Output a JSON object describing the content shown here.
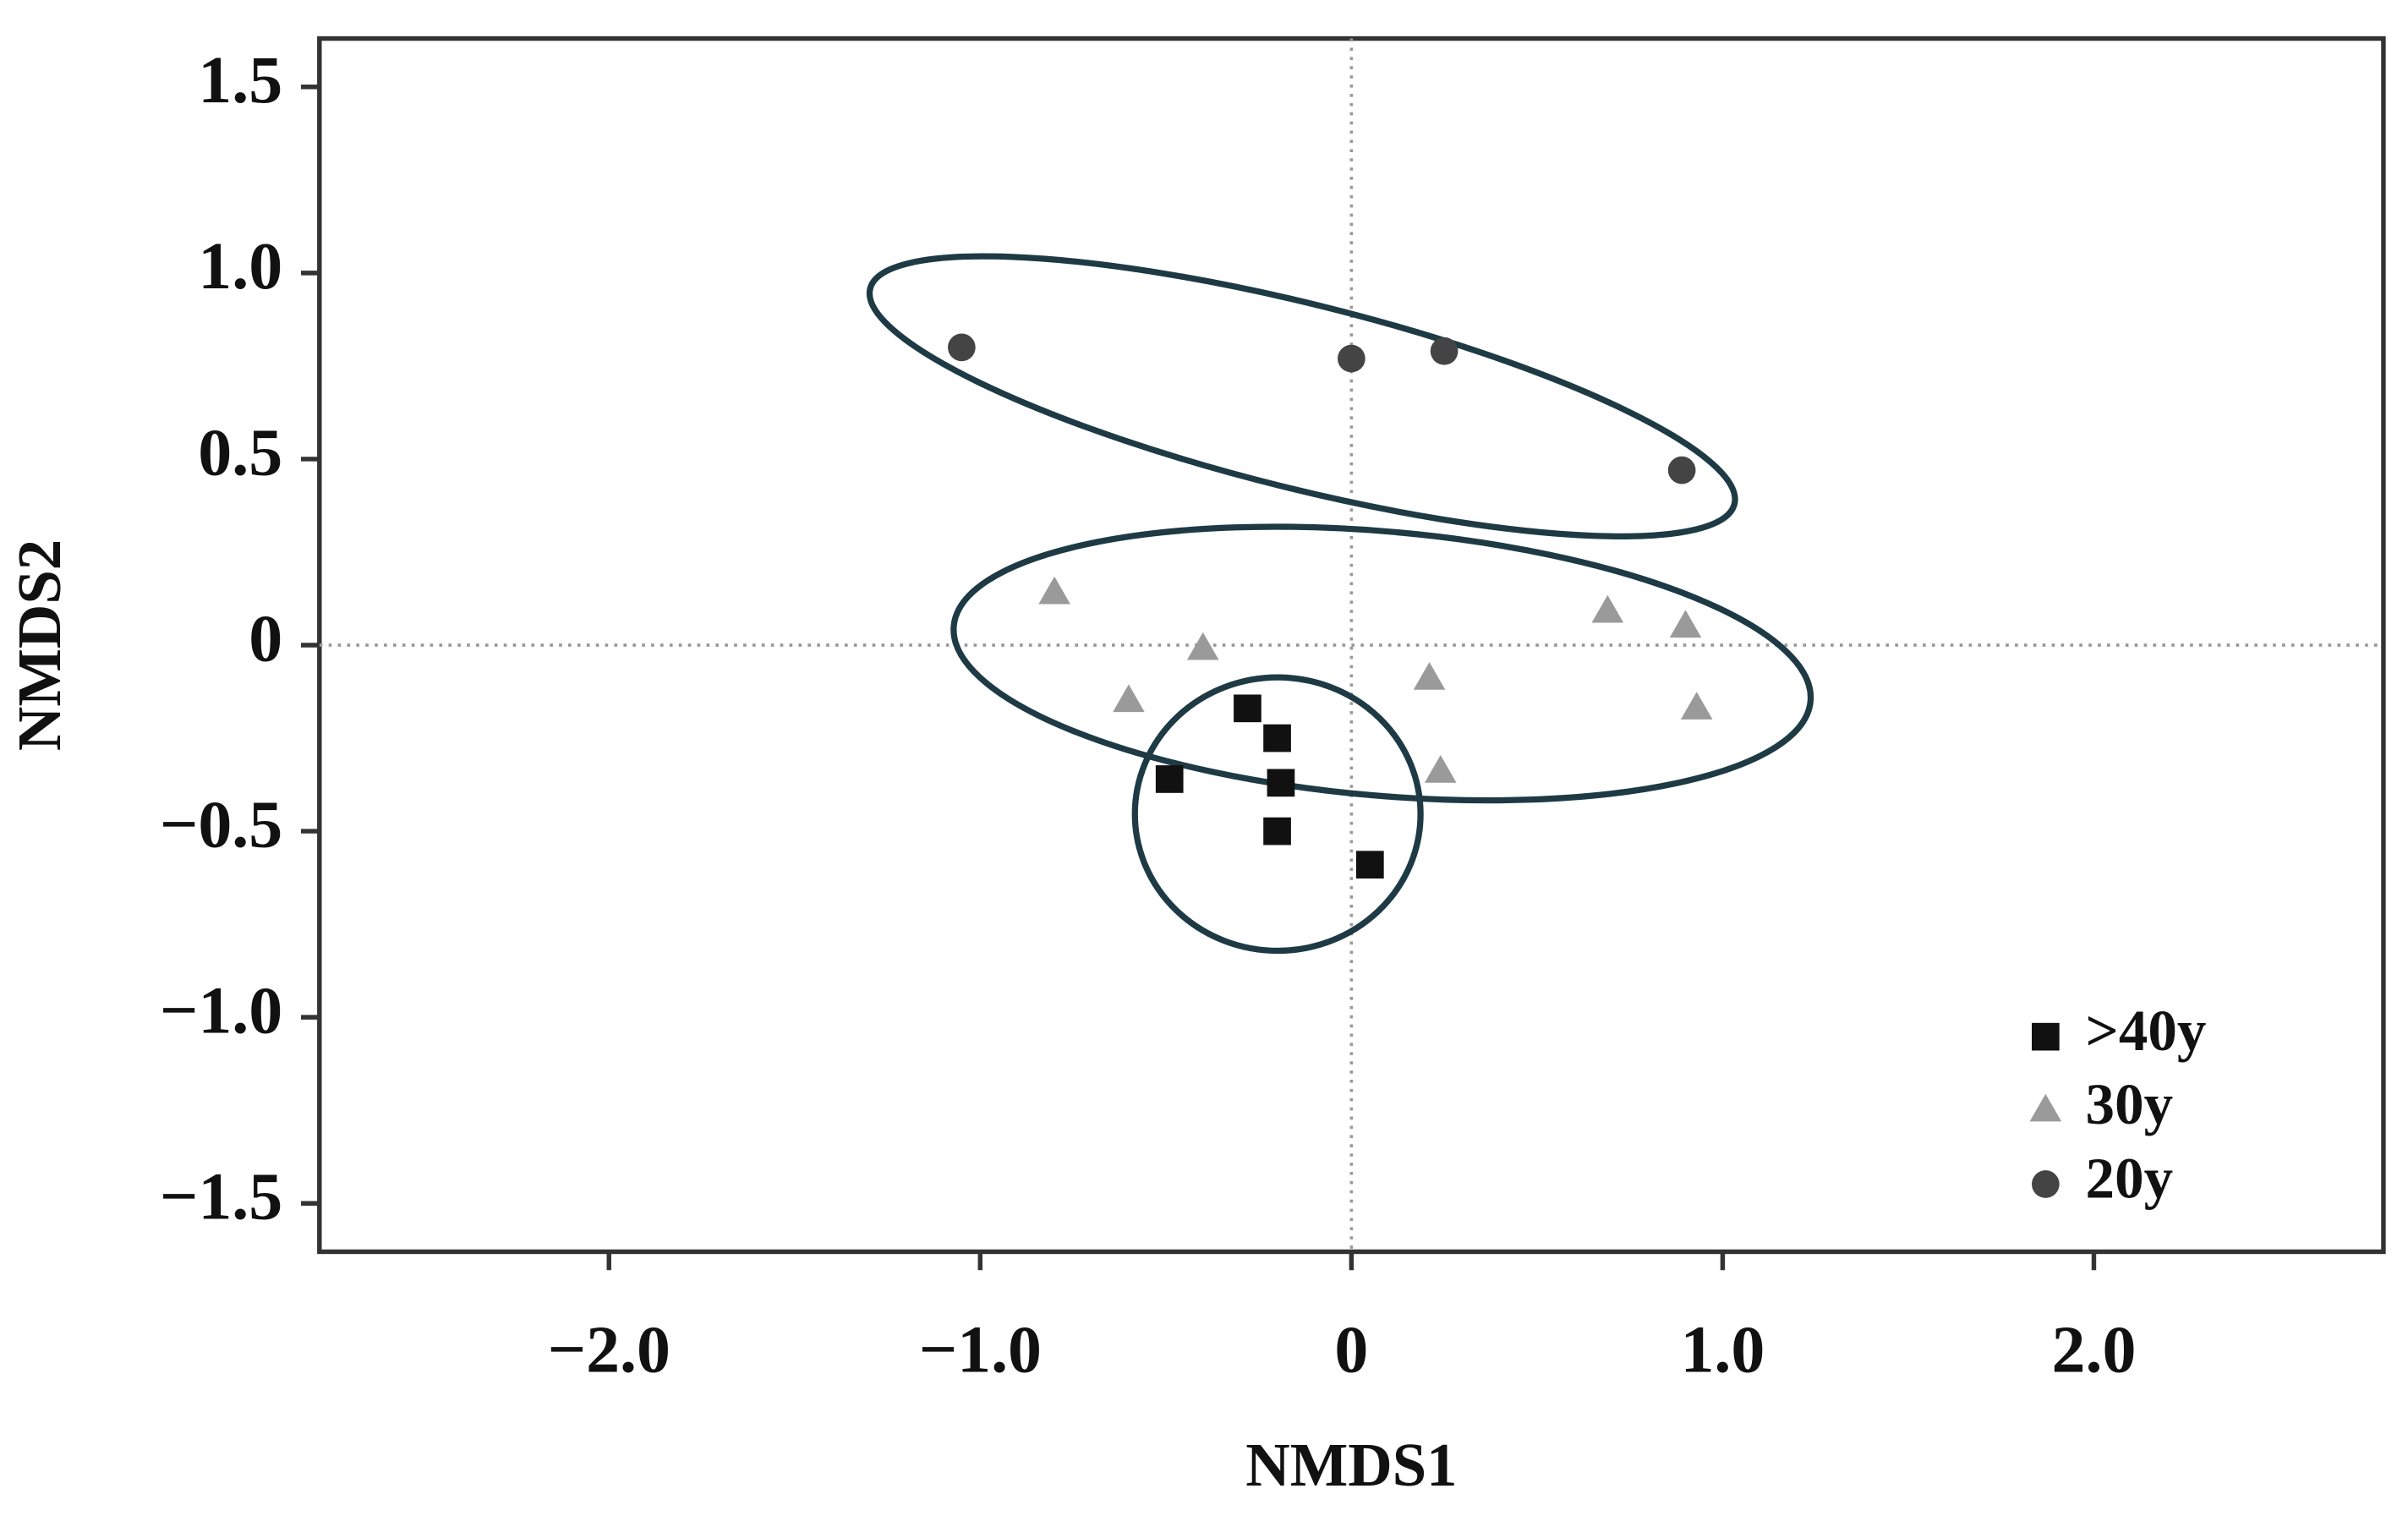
{
  "chart_data": {
    "type": "scatter",
    "xlabel": "NMDS1",
    "ylabel": "NMDS2",
    "xlim": [
      -2.78,
      2.78
    ],
    "ylim": [
      -1.63,
      1.63
    ],
    "xticks": [
      {
        "value": -2,
        "label": "−2.0"
      },
      {
        "value": -1,
        "label": "−1.0"
      },
      0,
      {
        "value": 1,
        "label": "1.0"
      },
      {
        "value": 2,
        "label": "2.0"
      }
    ],
    "yticks": [
      {
        "value": -1.5,
        "label": "−1.5"
      },
      {
        "value": -1,
        "label": "−1.0"
      },
      {
        "value": -0.5,
        "label": "−0.5"
      },
      0,
      0.5,
      {
        "value": 1,
        "label": "1.0"
      },
      1.5
    ],
    "legend": "lower right",
    "series": [
      {
        "name": ">40y",
        "color": "#111111",
        "marker": "square",
        "x": [
          -0.28,
          -0.2,
          -0.19,
          -0.2,
          -0.49,
          0.05
        ],
        "values": [
          -0.17,
          -0.25,
          -0.37,
          -0.5,
          -0.36,
          -0.59
        ]
      },
      {
        "name": "30y",
        "color": "#9a9a9a",
        "marker": "triangle",
        "x": [
          -0.8,
          -0.4,
          -0.6,
          0.21,
          0.24,
          0.69,
          0.9,
          0.93
        ],
        "values": [
          0.14,
          -0.01,
          -0.15,
          -0.09,
          -0.34,
          0.09,
          0.05,
          -0.17
        ]
      },
      {
        "name": "20y",
        "color": "#444444",
        "marker": "circle",
        "x": [
          -1.05,
          0,
          0.25,
          0.89
        ],
        "values": [
          0.8,
          0.77,
          0.79,
          0.47
        ]
      }
    ]
  }
}
